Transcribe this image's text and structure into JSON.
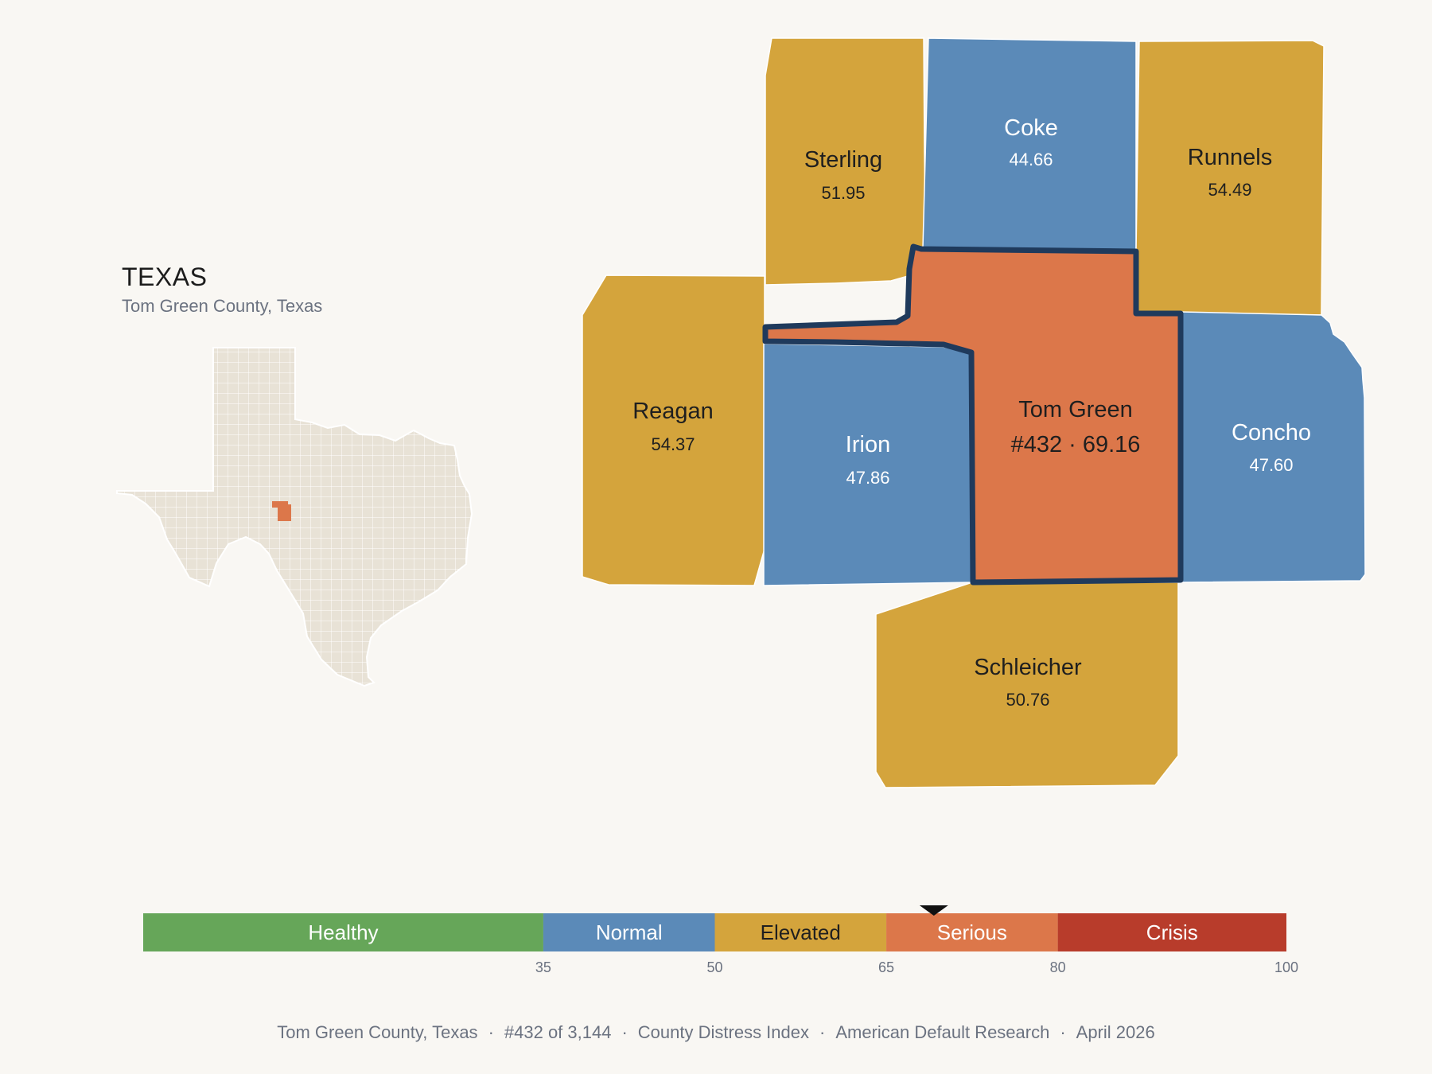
{
  "inset": {
    "state": "TEXAS",
    "subtitle": "Tom Green County, Texas",
    "highlight_color": "#dc774a",
    "base_color": "#e8e2d6"
  },
  "counties": [
    {
      "id": "sterling",
      "name": "Sterling",
      "value": "51.95",
      "color": "#d4a43c",
      "text_color": "#1f1f1f"
    },
    {
      "id": "coke",
      "name": "Coke",
      "value": "44.66",
      "color": "#5b8ab8",
      "text_color": "#ffffff"
    },
    {
      "id": "runnels",
      "name": "Runnels",
      "value": "54.49",
      "color": "#d4a43c",
      "text_color": "#1f1f1f"
    },
    {
      "id": "reagan",
      "name": "Reagan",
      "value": "54.37",
      "color": "#d4a43c",
      "text_color": "#1f1f1f"
    },
    {
      "id": "irion",
      "name": "Irion",
      "value": "47.86",
      "color": "#5b8ab8",
      "text_color": "#ffffff"
    },
    {
      "id": "tomgreen",
      "name": "Tom Green",
      "value": "#432 · 69.16",
      "color": "#dc774a",
      "text_color": "#1f1f1f",
      "selected": true,
      "outline": "#1f3a5c"
    },
    {
      "id": "concho",
      "name": "Concho",
      "value": "47.60",
      "color": "#5b8ab8",
      "text_color": "#ffffff"
    },
    {
      "id": "schleicher",
      "name": "Schleicher",
      "value": "50.76",
      "color": "#d4a43c",
      "text_color": "#1f1f1f"
    }
  ],
  "legend": {
    "min": 0,
    "max": 100,
    "marker_value": 69.16,
    "bands": [
      {
        "label": "Healthy",
        "from": 0,
        "to": 35,
        "color": "#66a659",
        "text_color": "#ffffff"
      },
      {
        "label": "Normal",
        "from": 35,
        "to": 50,
        "color": "#5b8ab8",
        "text_color": "#ffffff"
      },
      {
        "label": "Elevated",
        "from": 50,
        "to": 65,
        "color": "#d4a43c",
        "text_color": "#1f1f1f"
      },
      {
        "label": "Serious",
        "from": 65,
        "to": 80,
        "color": "#dc774a",
        "text_color": "#ffffff"
      },
      {
        "label": "Crisis",
        "from": 80,
        "to": 100,
        "color": "#b83c2b",
        "text_color": "#ffffff"
      }
    ],
    "ticks": [
      "35",
      "50",
      "65",
      "80",
      "100"
    ]
  },
  "footer": {
    "county": "Tom Green County, Texas",
    "rank": "#432 of 3,144",
    "index": "County Distress Index",
    "org": "American Default Research",
    "date": "April 2026"
  }
}
